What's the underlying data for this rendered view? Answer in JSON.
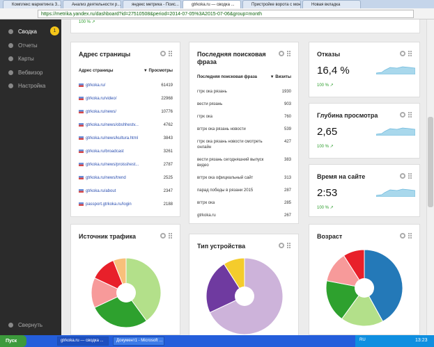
{
  "browser": {
    "tabs": [
      "Комплекс маркетинга З...",
      "Анализ деятельности р...",
      "яндекс метрика - Поис...",
      "gtrkoka.ru — сводка ...",
      "Пристройке ворота с мон...",
      "Новая вкладка"
    ],
    "url": "https://metrika.yandex.ru/dashboard?id=27510508&period=2014-07-05%3A2015-07-06&group=month"
  },
  "sidebar": {
    "items": [
      "Сводка",
      "Отчеты",
      "Карты",
      "Вебвизор",
      "Настройка"
    ],
    "badge": 1,
    "collapse": "Свернуть"
  },
  "top_widget": {
    "change": "100 % ↗"
  },
  "pages_widget": {
    "title": "Адрес страницы",
    "columns": [
      "Адрес страницы",
      "▼ Просмотры"
    ],
    "rows": [
      [
        "gtrkoka.ru/",
        61419
      ],
      [
        "gtrkoka.ru/video/",
        22968
      ],
      [
        "gtrkoka.ru/news/",
        10776
      ],
      [
        "gtrkoka.ru/news/obshhestv...",
        4762
      ],
      [
        "gtrkoka.ru/news/kultura.html",
        3843
      ],
      [
        "gtrkoka.ru/broadcast",
        3261
      ],
      [
        "gtrkoka.ru/news/proisshest...",
        2787
      ],
      [
        "gtrkoka.ru/news/trend",
        2525
      ],
      [
        "gtrkoka.ru/about",
        2347
      ],
      [
        "passport.gtrkoka.ru/login",
        2188
      ]
    ]
  },
  "phrases_widget": {
    "title": "Последняя поисковая фраза",
    "columns": [
      "Последняя поисковая фраза",
      "▼ Визиты"
    ],
    "rows": [
      [
        "гтрк ока рязань",
        1930
      ],
      [
        "вести рязань",
        903
      ],
      [
        "гтрк ока",
        760
      ],
      [
        "вгтрк ока рязань новости",
        539
      ],
      [
        "гтрк ока рязань новости смотреть онлайн",
        427
      ],
      [
        "вести рязань сегодняшний выпуск видео",
        383
      ],
      [
        "вгтрк ока официальный сайт",
        313
      ],
      [
        "парад победы в рязани 2015",
        287
      ],
      [
        "вгтрк ока",
        285
      ],
      [
        "gtrkoka.ru",
        267
      ]
    ]
  },
  "metrics": [
    {
      "title": "Отказы",
      "value": "16,4 %",
      "change": "100 % ↗"
    },
    {
      "title": "Глубина просмотра",
      "value": "2,65",
      "change": "100 % ↗"
    },
    {
      "title": "Время на сайте",
      "value": "2:53",
      "change": "100 % ↗"
    }
  ],
  "charts": [
    {
      "type": "pie",
      "title": "Источник трафика",
      "values": [
        40,
        28,
        14,
        12,
        6
      ],
      "colors": [
        "#b3e08a",
        "#2ea12e",
        "#f79a9a",
        "#e8202a",
        "#f8c07a"
      ]
    },
    {
      "type": "pie",
      "title": "Тип устройства",
      "values": [
        68,
        23,
        9
      ],
      "colors": [
        "#cdb3da",
        "#6f3aa0",
        "#f4cc2c"
      ]
    },
    {
      "type": "pie",
      "title": "Возраст",
      "values": [
        42,
        18,
        18,
        13,
        9
      ],
      "colors": [
        "#2479b8",
        "#b3e08a",
        "#2ea12e",
        "#f79a9a",
        "#e8202a"
      ]
    }
  ],
  "taskbar": {
    "start": "Пуск",
    "windows": [
      "gtrkoka.ru — сводка ...",
      "Документ1 - Microsoft ..."
    ],
    "lang": "RU",
    "time": "13:23"
  }
}
